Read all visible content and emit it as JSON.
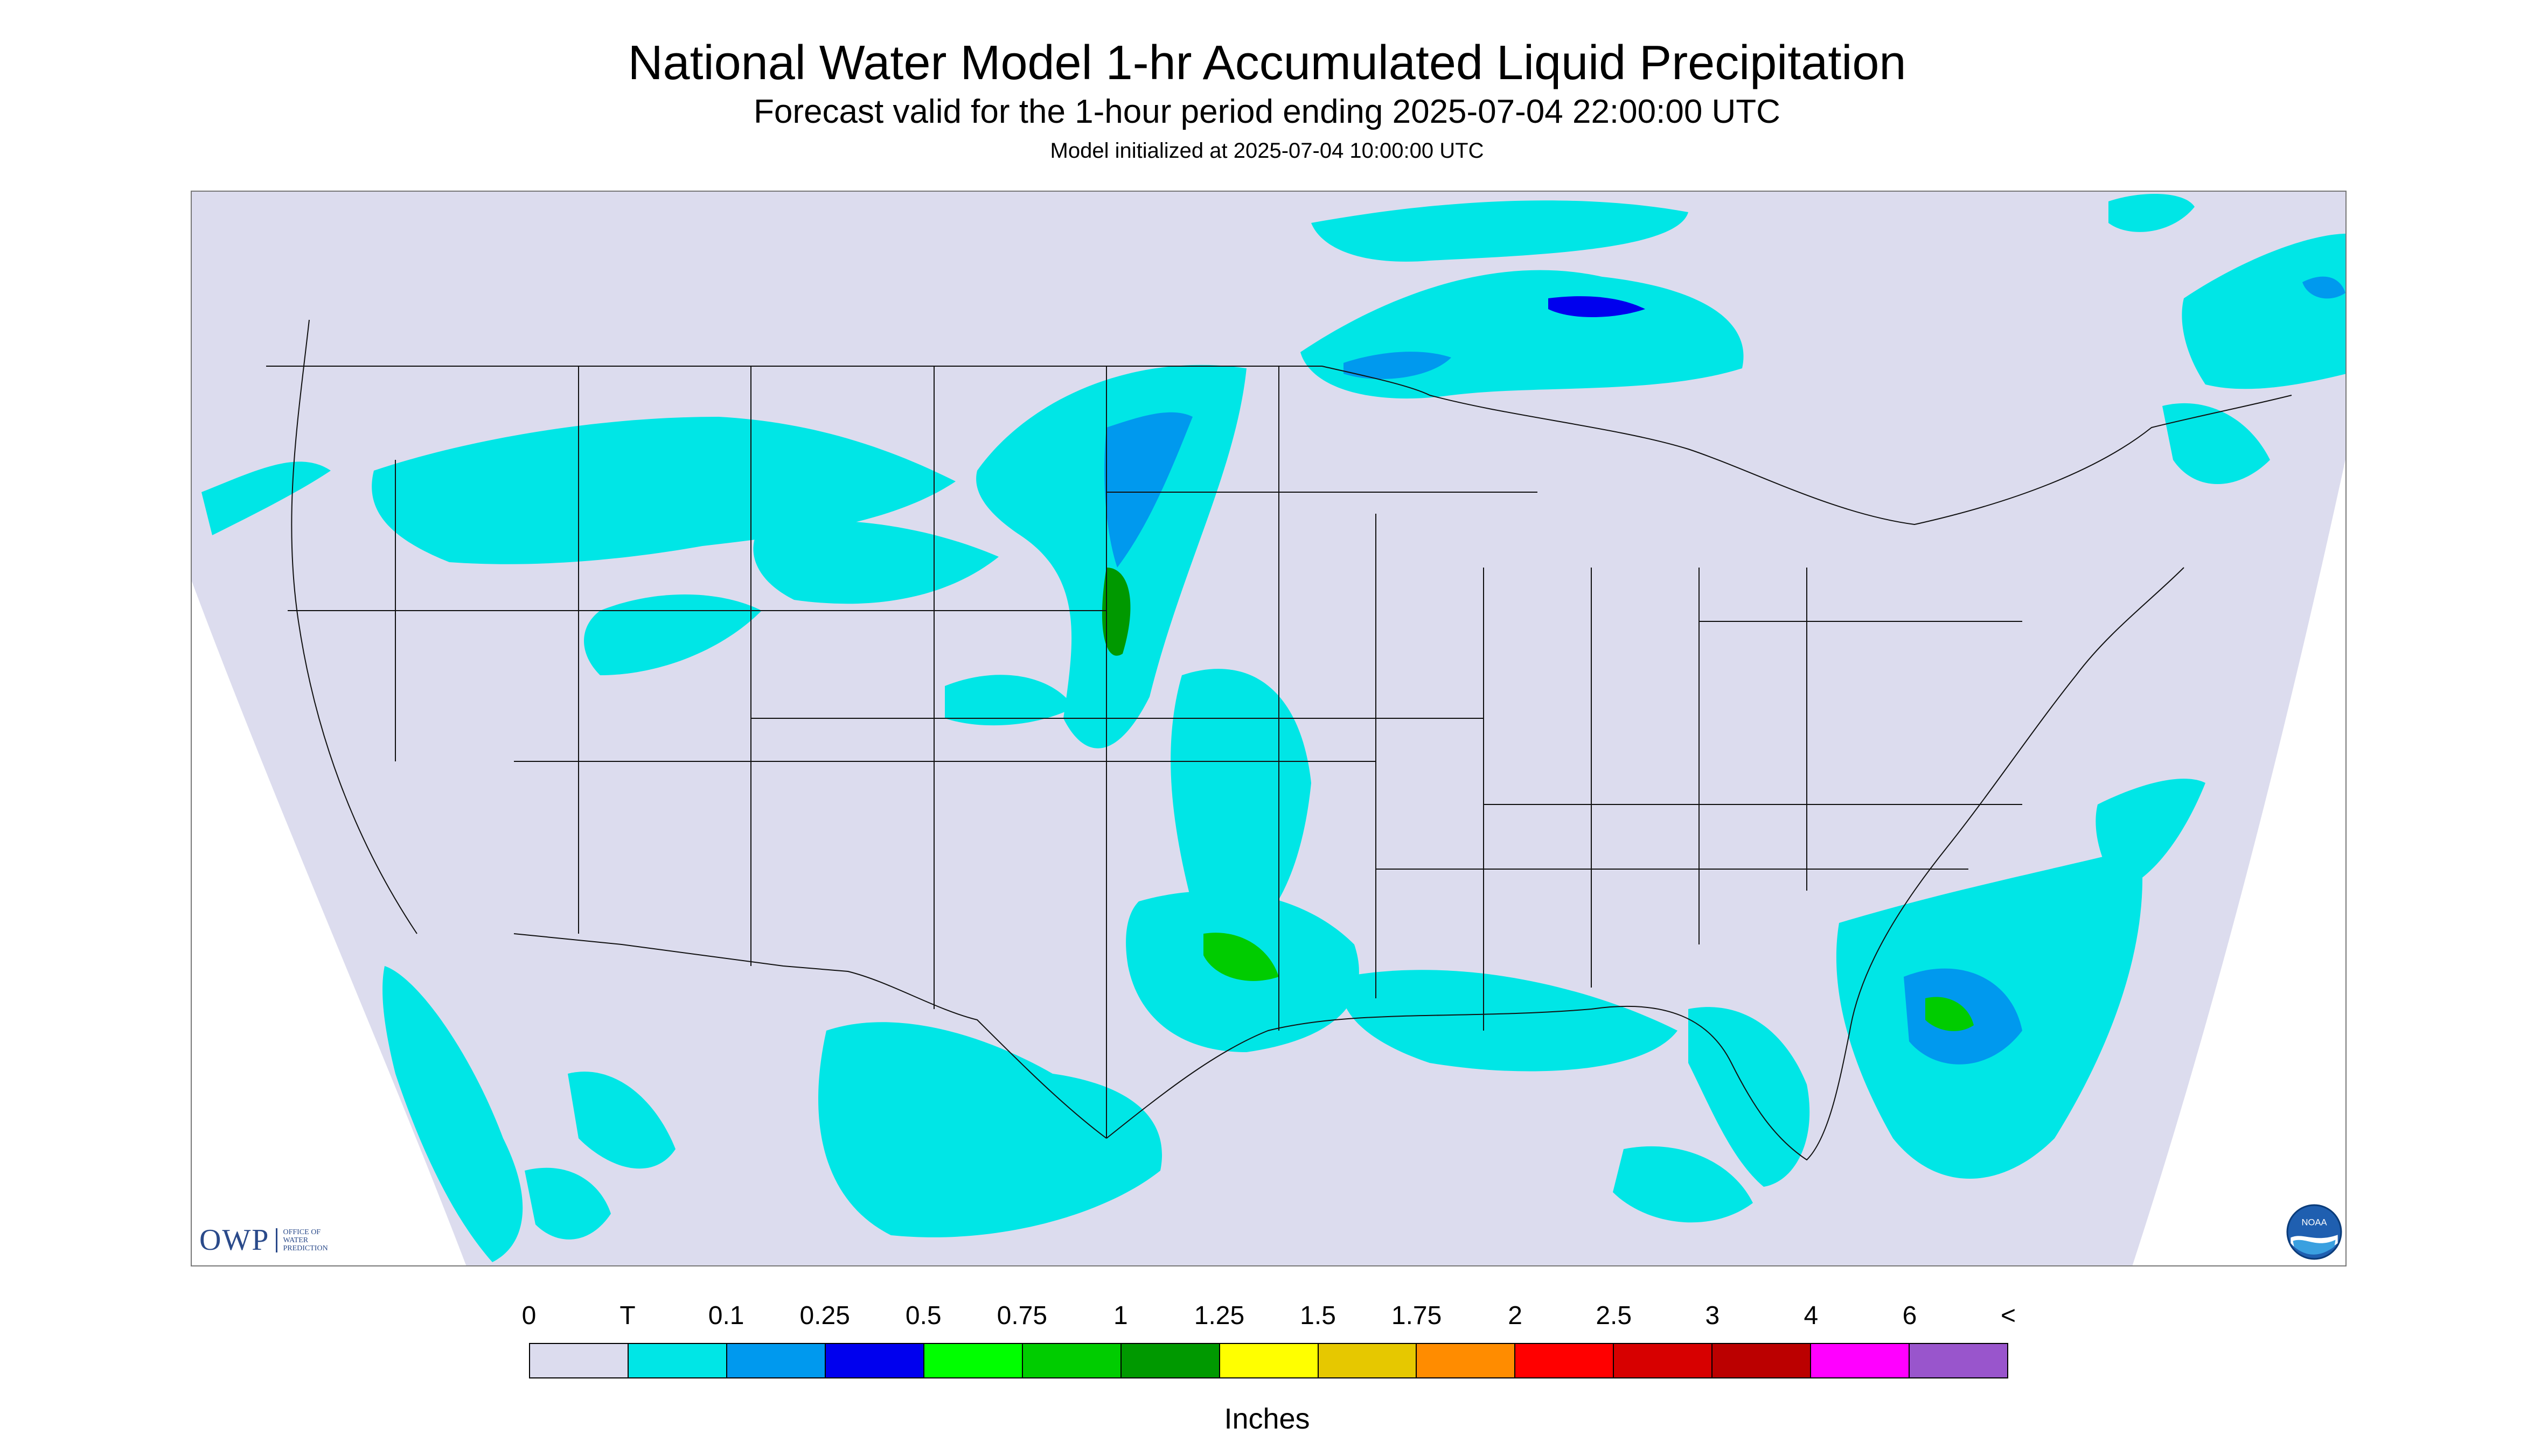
{
  "title": "National Water Model 1-hr Accumulated Liquid Precipitation",
  "subtitle": "Forecast valid for the 1-hour period ending 2025-07-04 22:00:00 UTC",
  "model_init": "Model initialized at 2025-07-04 10:00:00 UTC",
  "logo_owp": {
    "letters": "OWP",
    "sub": [
      "OFFICE OF",
      "WATER",
      "PREDICTION"
    ]
  },
  "logo_noaa": "NOAA",
  "legend": {
    "labels": [
      "0",
      "T",
      "0.1",
      "0.25",
      "0.5",
      "0.75",
      "1",
      "1.25",
      "1.5",
      "1.75",
      "2",
      "2.5",
      "3",
      "4",
      "6",
      "<"
    ],
    "colors": [
      "#dcdcee",
      "#00e6e6",
      "#0099ee",
      "#0000ee",
      "#00ff00",
      "#00cc00",
      "#009900",
      "#ffff00",
      "#e6c800",
      "#ff8c00",
      "#ff0000",
      "#d70000",
      "#bb0000",
      "#ff00ff",
      "#9955cc"
    ],
    "units": "Inches"
  },
  "colors": {
    "background_domain": "#dcdcee",
    "outside_domain": "#ffffff",
    "trace": "#00e6e6",
    "light": "#0099ee",
    "moderate": "#0000ee"
  }
}
